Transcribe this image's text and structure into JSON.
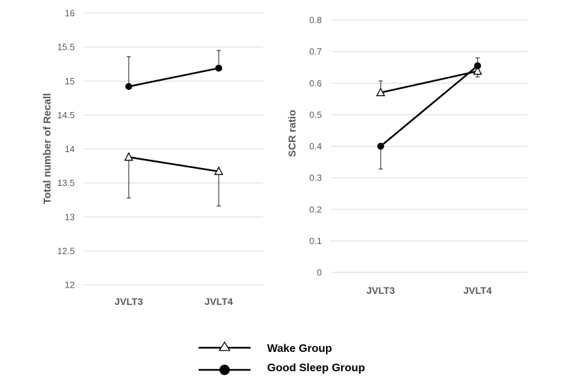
{
  "colors": {
    "grid": "#d9d9d9",
    "tick_text": "#595959",
    "series": "#000000",
    "background": "#ffffff"
  },
  "chart_data": [
    {
      "type": "line",
      "title": "",
      "xlabel": "",
      "ylabel": "Total number of Recall",
      "categories": [
        "JVLT3",
        "JVLT4"
      ],
      "ylim": [
        12,
        16
      ],
      "yticks": [
        12,
        12.5,
        13,
        13.5,
        14,
        14.5,
        15,
        15.5,
        16
      ],
      "ytick_labels": [
        "12",
        "12.5",
        "13",
        "13.5",
        "14",
        "14.5",
        "15",
        "15.5",
        "16"
      ],
      "grid": true,
      "series": [
        {
          "name": "Wake Group",
          "marker": "triangle-open",
          "values": [
            13.88,
            13.67
          ],
          "error_low": [
            0.6,
            0.51
          ],
          "error_high": [
            0,
            0
          ]
        },
        {
          "name": "Good Sleep Group",
          "marker": "circle-filled",
          "values": [
            14.92,
            15.19
          ],
          "error_low": [
            0,
            0
          ],
          "error_high": [
            0.44,
            0.26
          ]
        }
      ]
    },
    {
      "type": "line",
      "title": "",
      "xlabel": "",
      "ylabel": "SCR ratio",
      "categories": [
        "JVLT3",
        "JVLT4"
      ],
      "ylim": [
        0,
        0.8
      ],
      "yticks": [
        0,
        0.1,
        0.2,
        0.3,
        0.4,
        0.5,
        0.6,
        0.7,
        0.8
      ],
      "ytick_labels": [
        "0",
        "0.1",
        "0.2",
        "0.3",
        "0.4",
        "0.5",
        "0.6",
        "0.7",
        "0.8"
      ],
      "grid": true,
      "series": [
        {
          "name": "Wake Group",
          "marker": "triangle-open",
          "values": [
            0.57,
            0.638
          ],
          "error_low": [
            0,
            0.018
          ],
          "error_high": [
            0.037,
            0
          ]
        },
        {
          "name": "Good Sleep Group",
          "marker": "circle-filled",
          "values": [
            0.4,
            0.655
          ],
          "error_low": [
            0.072,
            0
          ],
          "error_high": [
            0,
            0.025
          ]
        }
      ]
    }
  ],
  "legend": {
    "placement": "bottom-center",
    "items": [
      {
        "label": "Wake Group",
        "marker": "triangle-open"
      },
      {
        "label": "Good Sleep Group",
        "marker": "circle-filled"
      }
    ]
  }
}
